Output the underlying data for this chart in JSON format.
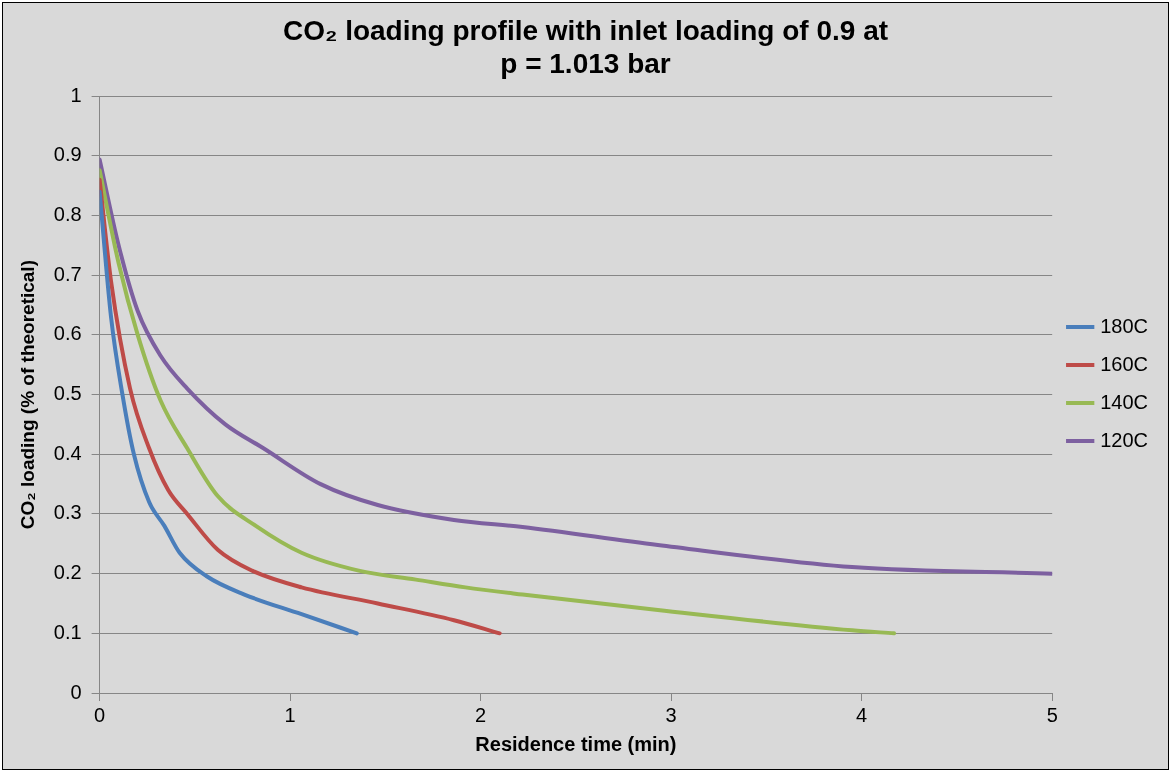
{
  "chart_data": {
    "type": "line",
    "title": "CO₂ loading profile with inlet loading of 0.9 at\np = 1.013 bar",
    "xlabel": "Residence time (min)",
    "ylabel": "CO₂ loading (% of theoretical)",
    "xlim": [
      0,
      5
    ],
    "xticks": [
      0,
      1,
      2,
      3,
      4,
      5
    ],
    "ylim": [
      0,
      1
    ],
    "yticks": [
      0,
      0.1,
      0.2,
      0.3,
      0.4,
      0.5,
      0.6,
      0.7,
      0.8,
      0.9,
      1
    ],
    "grid": "y",
    "legend": "right",
    "marker": "none",
    "line_style": "solid",
    "series": [
      {
        "name": "180C",
        "color": "#4a7ebb",
        "x": [
          0,
          0.06,
          0.12,
          0.18,
          0.26,
          0.34,
          0.42,
          0.56,
          0.76,
          1.06,
          1.35
        ],
        "values": [
          0.84,
          0.63,
          0.5,
          0.4,
          0.32,
          0.28,
          0.235,
          0.196,
          0.165,
          0.132,
          0.1
        ]
      },
      {
        "name": "160C",
        "color": "#be4b48",
        "x": [
          0,
          0.06,
          0.16,
          0.26,
          0.36,
          0.46,
          0.62,
          0.8,
          1.06,
          1.46,
          1.86,
          2.1
        ],
        "values": [
          0.86,
          0.69,
          0.51,
          0.41,
          0.34,
          0.3,
          0.24,
          0.205,
          0.177,
          0.15,
          0.122,
          0.1
        ]
      },
      {
        "name": "140C",
        "color": "#98b954",
        "x": [
          0,
          0.1,
          0.2,
          0.32,
          0.46,
          0.62,
          0.82,
          1.06,
          1.36,
          1.66,
          1.92,
          2.22,
          2.93,
          3.95,
          4.17
        ],
        "values": [
          0.876,
          0.72,
          0.6,
          0.49,
          0.41,
          0.33,
          0.28,
          0.235,
          0.205,
          0.19,
          0.177,
          0.165,
          0.139,
          0.105,
          0.1
        ]
      },
      {
        "name": "120C",
        "color": "#7d60a0",
        "x": [
          0,
          0.1,
          0.2,
          0.32,
          0.46,
          0.66,
          0.86,
          1.16,
          1.46,
          1.86,
          2.22,
          2.93,
          3.95,
          5
        ],
        "values": [
          0.894,
          0.75,
          0.64,
          0.565,
          0.51,
          0.45,
          0.41,
          0.35,
          0.315,
          0.29,
          0.278,
          0.248,
          0.211,
          0.2
        ]
      }
    ]
  }
}
